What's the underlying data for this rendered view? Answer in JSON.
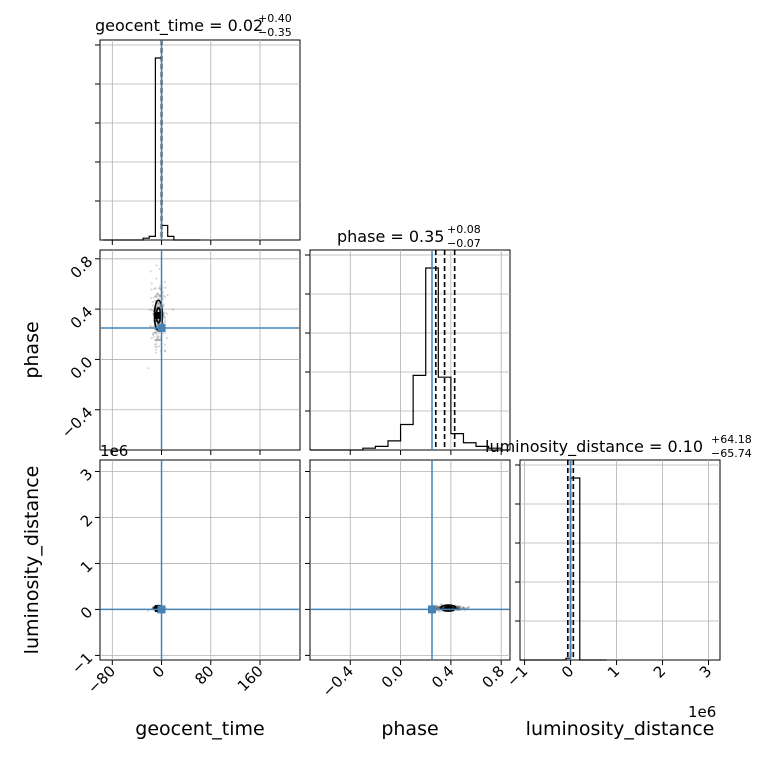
{
  "chart_data": {
    "type": "corner",
    "parameters": [
      "geocent_time",
      "phase",
      "luminosity_distance"
    ],
    "truths": {
      "geocent_time": 0.0,
      "phase": 0.25,
      "luminosity_distance": 0.0
    },
    "truth_color": "#4682b4",
    "titles": [
      {
        "text": "geocent_time = 0.02",
        "sup": "+0.40",
        "sub": "−0.35"
      },
      {
        "text": "phase = 0.35",
        "sup": "+0.08",
        "sub": "−0.07"
      },
      {
        "text": "luminosity_distance = 0.10",
        "sup": "+64.18",
        "sub": "−65.74"
      }
    ],
    "axis_labels": {
      "geocent_time": "geocent_time",
      "phase": "phase",
      "luminosity_distance": "luminosity_distance"
    },
    "offset_text": "1e6",
    "ticks": {
      "geocent_time": {
        "values": [
          -80,
          0,
          80,
          160
        ],
        "labels": [
          "−80",
          "0",
          "80",
          "160"
        ],
        "range": [
          -100,
          225
        ]
      },
      "phase": {
        "values": [
          -0.4,
          0.0,
          0.4,
          0.8
        ],
        "labels": [
          "−0.4",
          "0.0",
          "0.4",
          "0.8"
        ],
        "range": [
          -0.72,
          0.87
        ]
      },
      "luminosity_distance": {
        "values": [
          -1,
          0,
          1,
          2,
          3
        ],
        "labels": [
          "−1",
          "0",
          "1",
          "2",
          "3"
        ],
        "range": [
          -1.1,
          3.25
        ],
        "unit_scale": "1e6"
      }
    },
    "histograms": {
      "geocent_time": {
        "bin_edges": [
          -30,
          -20,
          -10,
          0,
          10,
          20,
          30
        ],
        "counts": [
          0.01,
          0.02,
          1.0,
          0.08,
          0.02,
          0.0
        ],
        "quantile_lines": [
          -0.33,
          0.02,
          0.42
        ]
      },
      "phase": {
        "bin_edges": [
          -0.4,
          -0.3,
          -0.2,
          -0.1,
          0.0,
          0.1,
          0.2,
          0.3,
          0.4,
          0.5,
          0.6,
          0.7,
          0.8
        ],
        "counts": [
          0.0,
          0.01,
          0.02,
          0.05,
          0.14,
          0.41,
          1.0,
          0.4,
          0.09,
          0.04,
          0.02,
          0.01
        ],
        "quantile_lines": [
          0.28,
          0.35,
          0.43
        ]
      },
      "luminosity_distance": {
        "bin_edges": [
          -0.25,
          -0.1,
          0.0,
          0.2,
          0.35
        ],
        "counts": [
          0.0,
          0.01,
          1.0,
          0.0
        ],
        "quantile_lines": [
          -0.06,
          0.0,
          0.06
        ]
      }
    },
    "joint_samples": {
      "phase_vs_geocent_time": {
        "center": [
          -5,
          0.35
        ],
        "spread": [
          6,
          0.12
        ]
      },
      "luminosity_distance_vs_geocent_time": {
        "center": [
          -5,
          0.02
        ],
        "spread": [
          4,
          0.02
        ]
      },
      "luminosity_distance_vs_phase": {
        "center": [
          0.38,
          0.03
        ],
        "spread": [
          0.06,
          0.03
        ]
      }
    },
    "grid": true
  }
}
